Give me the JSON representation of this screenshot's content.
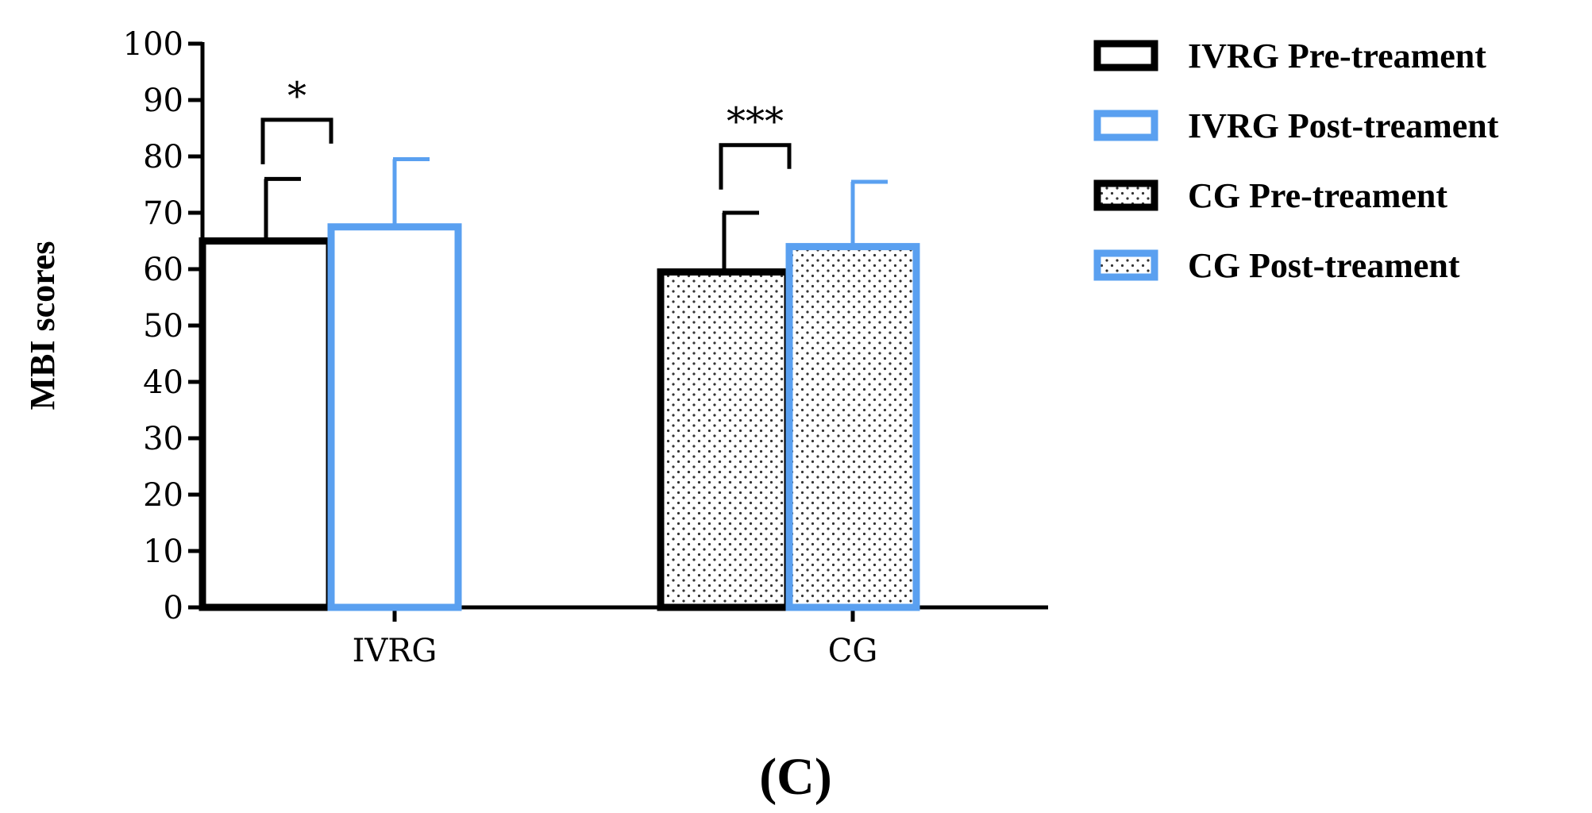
{
  "chart_data": {
    "type": "bar",
    "title": "",
    "xlabel": "",
    "ylabel": "MBI scores",
    "ylim": [
      0,
      100
    ],
    "yticks": [
      0,
      10,
      20,
      30,
      40,
      50,
      60,
      70,
      80,
      90,
      100
    ],
    "categories": [
      "IVRG",
      "CG"
    ],
    "series": [
      {
        "name": "IVRG Pre-treament",
        "category": "IVRG",
        "value": 65,
        "error": 11,
        "edge_color": "#000000",
        "fill": "none",
        "pattern": "none"
      },
      {
        "name": "IVRG Post-treament",
        "category": "IVRG",
        "value": 67.5,
        "error": 12,
        "edge_color": "#5aa0f0",
        "fill": "none",
        "pattern": "none"
      },
      {
        "name": "CG Pre-treament",
        "category": "CG",
        "value": 59.5,
        "error": 10.5,
        "edge_color": "#000000",
        "fill": "dots",
        "pattern": "dots"
      },
      {
        "name": "CG Post-treament",
        "category": "CG",
        "value": 64,
        "error": 11.5,
        "edge_color": "#5aa0f0",
        "fill": "dots",
        "pattern": "dots"
      }
    ],
    "significance": [
      {
        "category": "IVRG",
        "label": "*",
        "bracket_value": 86.5
      },
      {
        "category": "CG",
        "label": "***",
        "bracket_value": 82
      }
    ],
    "legend_position": "top-right",
    "grid": false
  },
  "panel_label": "(C)",
  "colors": {
    "pre": "#000000",
    "post": "#5aa0f0",
    "dots": "#333333"
  }
}
